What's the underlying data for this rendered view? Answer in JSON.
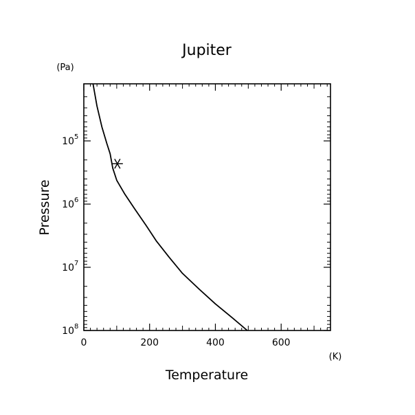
{
  "chart_data": {
    "type": "line",
    "title": "Jupiter",
    "xlabel": "Temperature",
    "ylabel": "Pressure",
    "x_unit": "(K)",
    "y_unit": "(Pa)",
    "xlim": [
      0,
      750
    ],
    "ylim": [
      100000000,
      12500
    ],
    "y_scale": "log",
    "y_inverted": true,
    "x_ticks": [
      0,
      200,
      400,
      600
    ],
    "x_tick_labels": [
      "0",
      "200",
      "400",
      "600"
    ],
    "y_ticks": [
      100000,
      1000000,
      10000000,
      100000000
    ],
    "y_tick_labels": [
      {
        "base": "10",
        "exp": "5"
      },
      {
        "base": "10",
        "exp": "6"
      },
      {
        "base": "10",
        "exp": "7"
      },
      {
        "base": "10",
        "exp": "8"
      }
    ],
    "grid": false,
    "series": [
      {
        "x": [
          28,
          40,
          55,
          70,
          80,
          88,
          100,
          125,
          155,
          190,
          220,
          260,
          300,
          350,
          400,
          450,
          497
        ],
        "y": [
          12500,
          28000,
          60000,
          110000,
          160000,
          270000,
          420000,
          700000,
          1200000,
          2200000,
          3800000,
          7000000,
          12500000,
          22000000,
          38000000,
          62000000,
          100000000
        ],
        "color": "#000000"
      }
    ],
    "markers": [
      {
        "x": 102,
        "y": 230000,
        "symbol": "asterisk"
      }
    ]
  }
}
